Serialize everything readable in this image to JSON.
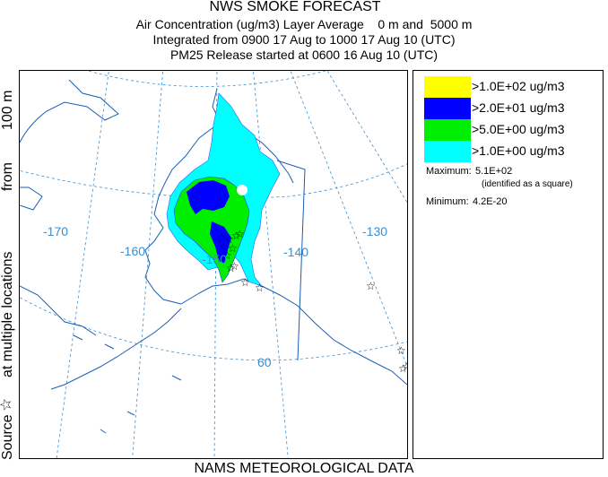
{
  "header": {
    "title": "NWS SMOKE FORECAST",
    "line1": "Air Concentration (ug/m3) Layer Average    0 m and  5000 m",
    "line2": "Integrated from 0900 17 Aug to 1000 17 Aug 10 (UTC)",
    "line3": "PM25 Release started at 0600 16 Aug 10 (UTC)"
  },
  "side_label": {
    "source": "Source",
    "at_multiple": "at multiple locations",
    "from": "from",
    "height": "100 m"
  },
  "map": {
    "longitude_labels": [
      "-170",
      "-160",
      "-150",
      "-140",
      "-130"
    ],
    "latitude_labels": [
      "60"
    ],
    "colors": {
      "coast": "#1a5fb4",
      "grid": "#3a8fd0",
      "band_100": "#ffff00",
      "band_20": "#0000ff",
      "band_5": "#00ee00",
      "band_1": "#00ffff"
    }
  },
  "legend": {
    "items": [
      {
        "label": ">1.0E+02 ug/m3",
        "color": "#ffff00"
      },
      {
        "label": ">2.0E+01 ug/m3",
        "color": "#0000ff"
      },
      {
        "label": ">5.0E+00 ug/m3",
        "color": "#00ee00"
      },
      {
        "label": ">1.0E+00 ug/m3",
        "color": "#00ffff"
      }
    ],
    "maximum_label": "Maximum:",
    "maximum_value": "5.1E+02",
    "maximum_note": "(identified as a square)",
    "minimum_label": "Minimum:",
    "minimum_value": "4.2E-20"
  },
  "footer": "NAMS METEOROLOGICAL DATA"
}
